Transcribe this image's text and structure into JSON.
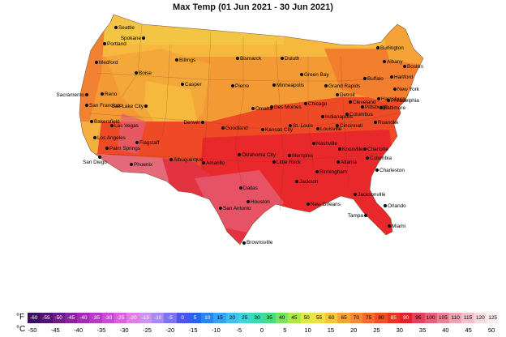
{
  "title": "Max Temp (01 Jun 2021 - 30 Jun 2021)",
  "legend": {
    "f_unit": "°F",
    "c_unit": "°C",
    "f_values": [
      "-60",
      "-55",
      "-50",
      "-45",
      "-40",
      "-35",
      "-30",
      "-25",
      "-20",
      "-15",
      "-10",
      "-5",
      "0",
      "5",
      "10",
      "15",
      "20",
      "25",
      "30",
      "35",
      "40",
      "45",
      "50",
      "55",
      "60",
      "65",
      "70",
      "75",
      "80",
      "85",
      "90",
      "95",
      "100",
      "105",
      "110",
      "115",
      "120",
      "125"
    ],
    "f_colors": [
      "#3b0a5e",
      "#54106f",
      "#6d1a86",
      "#86239d",
      "#a02cb4",
      "#b53ac2",
      "#c64bd0",
      "#d862dd",
      "#e37de6",
      "#cc93ed",
      "#a989ef",
      "#7d73ee",
      "#4a55ea",
      "#2a63e8",
      "#2d83ee",
      "#37a2f2",
      "#45bff2",
      "#42d2da",
      "#3cdab0",
      "#47dc84",
      "#79e25f",
      "#aee84e",
      "#dfe94c",
      "#f4de47",
      "#f6c43f",
      "#f5a639",
      "#f48a31",
      "#f26d2a",
      "#ee4f25",
      "#ea3322",
      "#e0232a",
      "#e0435a",
      "#e56378",
      "#ea8396",
      "#efa3b2",
      "#f4c1cc",
      "#f8dbe1",
      "#fcf0f2"
    ],
    "c_values": [
      "-50",
      "-45",
      "-40",
      "-35",
      "-30",
      "-25",
      "-20",
      "-15",
      "-10",
      "-5",
      "0",
      "5",
      "10",
      "15",
      "20",
      "25",
      "30",
      "35",
      "40",
      "45",
      "50"
    ]
  },
  "cities": [
    "Seattle",
    "Spokane",
    "Portland",
    "Medford",
    "Boise",
    "Billings",
    "Bismarck",
    "Duluth",
    "Casper",
    "Pierre",
    "Minneapolis",
    "Green Bay",
    "Burlington",
    "Albany",
    "Boston",
    "Hartford",
    "Buffalo",
    "New York",
    "Grand Rapids",
    "Detroit",
    "Harrisburg",
    "Philadelphia",
    "Baltimore",
    "Cleveland",
    "Pittsburgh",
    "Columbus",
    "Chicago",
    "Des Moines",
    "Omaha",
    "Indianapolis",
    "Cincinnati",
    "Roanoke",
    "Salt Lake City",
    "Reno",
    "Sacramento",
    "San Francisco",
    "Denver",
    "Goodland",
    "Kansas City",
    "St. Louis",
    "Louisville",
    "Nashville",
    "Knoxville",
    "Charlotte",
    "Columbia",
    "Charleston",
    "Atlanta",
    "Birmingham",
    "Memphis",
    "Little Rock",
    "Oklahoma City",
    "Amarillo",
    "Albuquerque",
    "Flagstaff",
    "Phoenix",
    "Las Vegas",
    "Bakersfield",
    "Los Angeles",
    "Palm Springs",
    "San Diego",
    "Dallas",
    "Jackson",
    "Houston",
    "San Antonio",
    "New Orleans",
    "Jacksonville",
    "Orlando",
    "Tampa",
    "Miami",
    "Brownsville"
  ]
}
